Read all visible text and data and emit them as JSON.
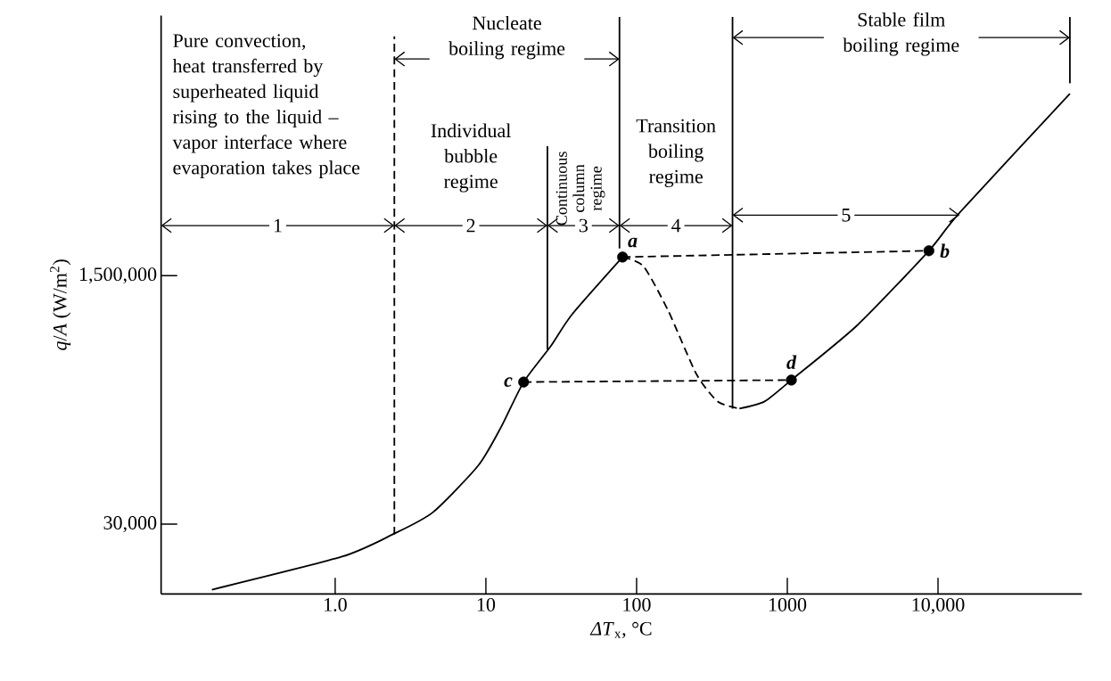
{
  "chart_data": {
    "type": "line",
    "xlabel": "*ΔT*$_{x}$, °C",
    "ylabel": "*q*/*A* (W/m$^{2}$)",
    "log": "xy",
    "xlim": [
      0.07,
      90000
    ],
    "ylim": [
      10000,
      90000000
    ],
    "xticks": [
      {
        "value": 1,
        "label": "1.0"
      },
      10,
      100,
      1000,
      {
        "value": 10000,
        "label": "10,000"
      }
    ],
    "yticks": [
      {
        "value": 30000,
        "label": "30,000"
      },
      {
        "value": 1500000,
        "label": "1,500,000"
      }
    ],
    "series": [
      {
        "color": "#000000",
        "line_style": "solid",
        "x": [
          0.152,
          1.11,
          2.4,
          4.44,
          8.9,
          12.6,
          17.8,
          26.9,
          37.3,
          80.7
        ],
        "values": [
          10700,
          18000,
          25500,
          36100,
          75500,
          138000,
          281000,
          493000,
          815000,
          2010000
        ]
      },
      {
        "color": "#000000",
        "line_style": "dashed",
        "x": [
          80.7,
          111,
          162,
          250,
          347,
          481
        ],
        "values": [
          2010000,
          1740000,
          865000,
          317000,
          206000,
          185000
        ]
      },
      {
        "color": "#000000",
        "line_style": "solid",
        "x": [
          481,
          707,
          1064,
          2920,
          8700,
          13900,
          75000
        ],
        "values": [
          185000,
          207000,
          290000,
          689000,
          2220000,
          4040000,
          26300000
        ]
      },
      {
        "color": "#000000",
        "line_style": "dashed",
        "x": [
          80.7,
          8700
        ],
        "values": [
          2010000,
          2220000
        ]
      },
      {
        "color": "#000000",
        "line_style": "dashed",
        "x": [
          17.8,
          1064
        ],
        "values": [
          281000,
          290000
        ]
      },
      {
        "color": "#000000",
        "line_style": "dashed",
        "x": [
          2.47,
          2.47
        ],
        "values": [
          25500,
          65000000
        ]
      },
      {
        "color": "#000000",
        "line_style": "solid",
        "x": [
          25.6,
          25.6
        ],
        "values": [
          470000,
          11500000
        ]
      },
      {
        "color": "#000000",
        "line_style": "solid",
        "x": [
          77,
          77
        ],
        "values": [
          2300000,
          88000000
        ]
      },
      {
        "color": "#000000",
        "line_style": "solid",
        "x": [
          433,
          433
        ],
        "values": [
          185000,
          88000000
        ]
      },
      {
        "color": "#000000",
        "line_style": "solid",
        "x": [
          75000,
          75000
        ],
        "values": [
          31000000,
          88000000
        ]
      },
      {
        "type": "scatter",
        "color": "#000000",
        "marker": "circle",
        "x": [
          80.7,
          8700,
          17.8,
          1064
        ],
        "values": [
          2010000,
          2220000,
          281000,
          290000
        ]
      }
    ],
    "annotations": [
      "Pure convection, heat transferred by superheated liquid rising to the liquid – vapor interface where evaporation takes place",
      "Nucleate boiling regime",
      "Individual bubble regime",
      {
        "text": "Continuous column regime",
        "x": 25.6,
        "y": 11500000
      },
      "Transition boiling regime",
      "Stable film boiling regime",
      "1",
      "2",
      "3",
      "4",
      "5",
      {
        "text": "a",
        "x": 80.7,
        "y": 2010000
      },
      {
        "text": "b",
        "x": 8700,
        "y": 2220000
      },
      {
        "text": "c",
        "x": 17.8,
        "y": 281000
      },
      {
        "text": "d",
        "x": 1064,
        "y": 290000
      }
    ]
  }
}
